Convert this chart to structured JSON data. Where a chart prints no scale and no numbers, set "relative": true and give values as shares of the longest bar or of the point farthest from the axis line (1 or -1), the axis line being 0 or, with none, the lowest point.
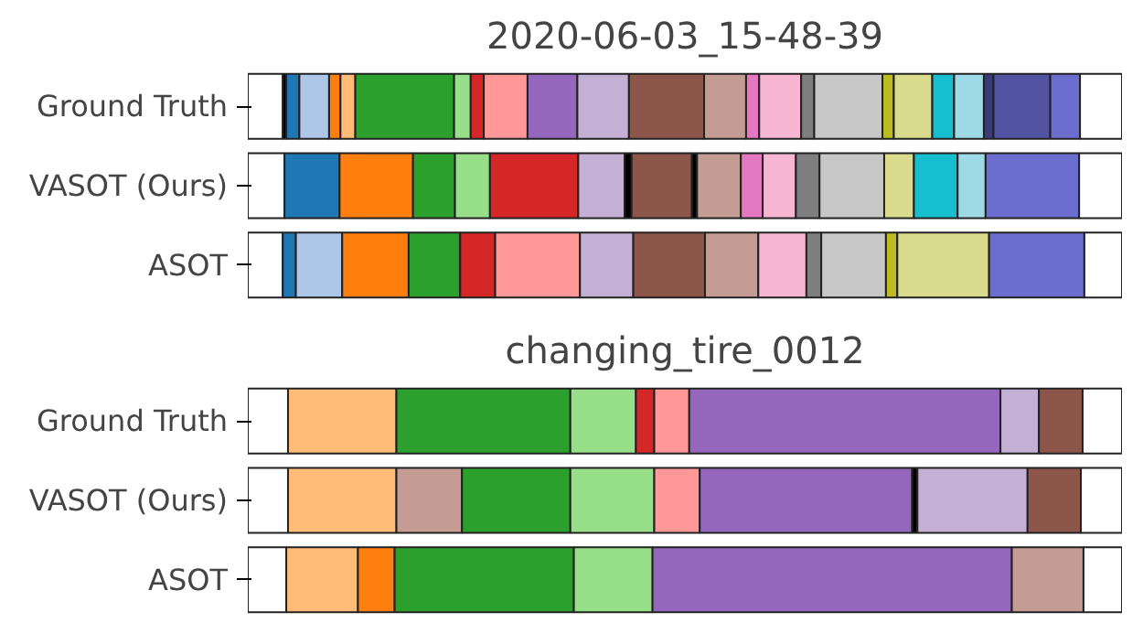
{
  "chart_data": [
    {
      "type": "bar",
      "orientation": "horizontal",
      "stacked": true,
      "relative": true,
      "title": "2020-06-03_15-48-39",
      "categories": [
        "Ground Truth",
        "VASOT (Ours)",
        "ASOT"
      ],
      "series": [
        {
          "values": [
            0.04,
            0.042,
            0.04
          ],
          "colors": [
            "#ffffff",
            "#ffffff",
            "#ffffff"
          ]
        },
        {
          "values": [
            0.004,
            0.063,
            0.015
          ],
          "colors": [
            "#000000",
            "#1f77b4",
            "#1f77b4"
          ]
        },
        {
          "values": [
            0.015,
            0.084,
            0.053
          ],
          "colors": [
            "#1f77b4",
            "#ff7f0e",
            "#aec7e8"
          ]
        },
        {
          "values": [
            0.034,
            0.048,
            0.076
          ],
          "colors": [
            "#aec7e8",
            "#2ca02c",
            "#ff7f0e"
          ]
        },
        {
          "values": [
            0.013,
            0.04,
            0.059
          ],
          "colors": [
            "#ff7f0e",
            "#98df8a",
            "#2ca02c"
          ]
        },
        {
          "values": [
            0.017,
            0.101,
            0.04
          ],
          "colors": [
            "#ffbb78",
            "#d62728",
            "#d62728"
          ]
        },
        {
          "values": [
            0.113,
            0.053,
            0.097
          ],
          "colors": [
            "#2ca02c",
            "#c5b0d5",
            "#ff9896"
          ]
        },
        {
          "values": [
            0.019,
            0.008,
            0.061
          ],
          "colors": [
            "#98df8a",
            "#000000",
            "#c5b0d5"
          ]
        },
        {
          "values": [
            0.015,
            0.069,
            0.082
          ],
          "colors": [
            "#d62728",
            "#8c564b",
            "#8c564b"
          ]
        },
        {
          "values": [
            0.05,
            0.006,
            0.061
          ],
          "colors": [
            "#ff9896",
            "#000000",
            "#c49c94"
          ]
        },
        {
          "values": [
            0.057,
            0.05,
            0.055
          ],
          "colors": [
            "#9467bd",
            "#c49c94",
            "#f7b6d2"
          ]
        },
        {
          "values": [
            0.059,
            0.025,
            0.017
          ],
          "colors": [
            "#c5b0d5",
            "#e377c2",
            "#7f7f7f"
          ]
        },
        {
          "values": [
            0.086,
            0.038,
            0.074
          ],
          "colors": [
            "#8c564b",
            "#f7b6d2",
            "#c7c7c7"
          ]
        },
        {
          "values": [
            0.048,
            0.027,
            0.013
          ],
          "colors": [
            "#c49c94",
            "#7f7f7f",
            "#bcbd22"
          ]
        },
        {
          "values": [
            0.015,
            0.074,
            0.105
          ],
          "colors": [
            "#e377c2",
            "#c7c7c7",
            "#dbdb8d"
          ]
        },
        {
          "values": [
            0.048,
            0.034,
            0.109
          ],
          "colors": [
            "#f7b6d2",
            "#dbdb8d",
            "#6b6ecf"
          ]
        },
        {
          "values": [
            0.015,
            0.05,
            0.043
          ],
          "colors": [
            "#7f7f7f",
            "#17becf",
            "#ffffff"
          ]
        },
        {
          "values": [
            0.078,
            0.032,
            null
          ],
          "colors": [
            "#c7c7c7",
            "#9edae5",
            null
          ]
        },
        {
          "values": [
            0.013,
            0.107,
            null
          ],
          "colors": [
            "#bcbd22",
            "#6b6ecf",
            null
          ]
        },
        {
          "values": [
            0.044,
            0.049,
            null
          ],
          "colors": [
            "#dbdb8d",
            "#ffffff",
            null
          ]
        },
        {
          "values": [
            0.025,
            null,
            null
          ],
          "colors": [
            "#17becf",
            null,
            null
          ]
        },
        {
          "values": [
            0.034,
            null,
            null
          ],
          "colors": [
            "#9edae5",
            null,
            null
          ]
        },
        {
          "values": [
            0.011,
            null,
            null
          ],
          "colors": [
            "#393b79",
            null,
            null
          ]
        },
        {
          "values": [
            0.065,
            null,
            null
          ],
          "colors": [
            "#5254a3",
            null,
            null
          ]
        },
        {
          "values": [
            0.034,
            null,
            null
          ],
          "colors": [
            "#6b6ecf",
            null,
            null
          ]
        },
        {
          "values": [
            0.048,
            null,
            null
          ],
          "colors": [
            "#ffffff",
            null,
            null
          ]
        }
      ]
    },
    {
      "type": "bar",
      "orientation": "horizontal",
      "stacked": true,
      "relative": true,
      "title": "changing_tire_0012",
      "categories": [
        "Ground Truth",
        "VASOT (Ours)",
        "ASOT"
      ],
      "series": [
        {
          "values": [
            0.046,
            0.046,
            0.044
          ],
          "colors": [
            "#ffffff",
            "#ffffff",
            "#ffffff"
          ]
        },
        {
          "values": [
            0.124,
            0.124,
            0.082
          ],
          "colors": [
            "#ffbb78",
            "#ffbb78",
            "#ffbb78"
          ]
        },
        {
          "values": [
            0.199,
            0.075,
            0.042
          ],
          "colors": [
            "#2ca02c",
            "#c49c94",
            "#ff7f0e"
          ]
        },
        {
          "values": [
            0.075,
            0.124,
            0.205
          ],
          "colors": [
            "#98df8a",
            "#2ca02c",
            "#2ca02c"
          ]
        },
        {
          "values": [
            0.021,
            0.096,
            0.09
          ],
          "colors": [
            "#d62728",
            "#98df8a",
            "#98df8a"
          ]
        },
        {
          "values": [
            0.04,
            0.052,
            0.411
          ],
          "colors": [
            "#ff9896",
            "#ff9896",
            "#9467bd"
          ]
        },
        {
          "values": [
            0.356,
            0.243,
            0.082
          ],
          "colors": [
            "#9467bd",
            "#9467bd",
            "#c49c94"
          ]
        },
        {
          "values": [
            0.044,
            0.006,
            0.044
          ],
          "colors": [
            "#c5b0d5",
            "#000000",
            "#ffffff"
          ]
        },
        {
          "values": [
            0.05,
            0.126,
            null
          ],
          "colors": [
            "#8c564b",
            "#c5b0d5",
            null
          ]
        },
        {
          "values": [
            0.045,
            0.061,
            null
          ],
          "colors": [
            "#ffffff",
            "#8c564b",
            null
          ]
        },
        {
          "values": [
            null,
            0.047,
            null
          ],
          "colors": [
            null,
            "#ffffff",
            null
          ]
        }
      ]
    }
  ]
}
